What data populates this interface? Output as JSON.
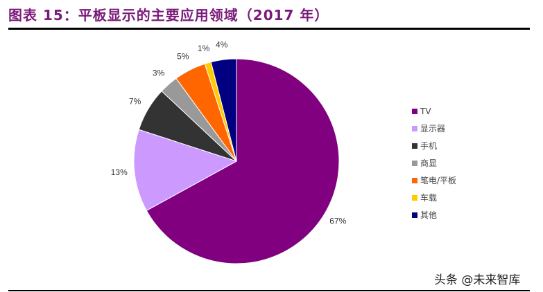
{
  "title": "图表 15：平板显示的主要应用领域（2017 年）",
  "watermark": "头条 @未来智库",
  "chart_data": {
    "type": "pie",
    "start": "top",
    "direction": "clockwise",
    "legend_position": "right",
    "slices": [
      {
        "label": "TV",
        "value": 67,
        "data_label": "67%",
        "color": "#800080"
      },
      {
        "label": "显示器",
        "value": 13,
        "data_label": "13%",
        "color": "#CC99FF"
      },
      {
        "label": "手机",
        "value": 7,
        "data_label": "7%",
        "color": "#333333"
      },
      {
        "label": "商显",
        "value": 3,
        "data_label": "3%",
        "color": "#999999"
      },
      {
        "label": "笔电/平板",
        "value": 5,
        "data_label": "5%",
        "color": "#FF6600"
      },
      {
        "label": "车载",
        "value": 1,
        "data_label": "1%",
        "color": "#FFCC00"
      },
      {
        "label": "其他",
        "value": 4,
        "data_label": "4%",
        "color": "#000080"
      }
    ]
  }
}
